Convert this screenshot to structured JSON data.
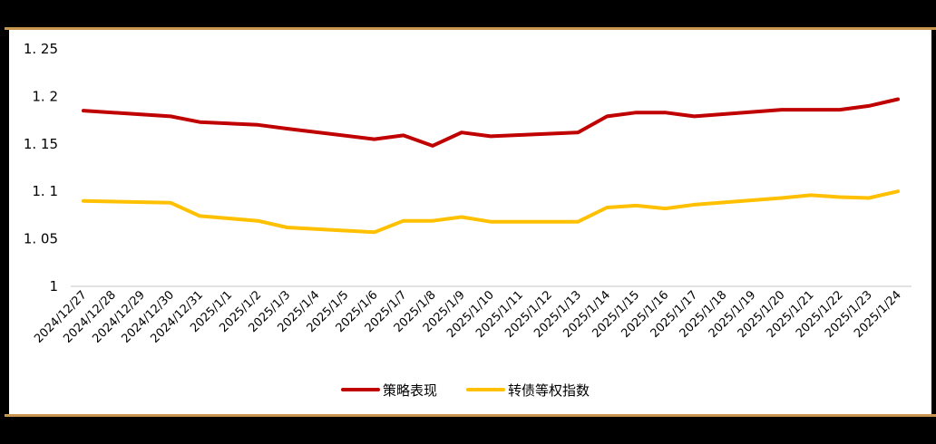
{
  "chart_data": {
    "type": "line",
    "title": "",
    "xlabel": "",
    "ylabel": "",
    "ylim": [
      1,
      1.25
    ],
    "yticks": [
      "1",
      "1.05",
      "1.1",
      "1.15",
      "1.2",
      "1.25"
    ],
    "grid": false,
    "legend_position": "bottom",
    "categories": [
      "2024/12/27",
      "2024/12/28",
      "2024/12/29",
      "2024/12/30",
      "2024/12/31",
      "2025/1/1",
      "2025/1/2",
      "2025/1/3",
      "2025/1/4",
      "2025/1/5",
      "2025/1/6",
      "2025/1/7",
      "2025/1/8",
      "2025/1/9",
      "2025/1/10",
      "2025/1/11",
      "2025/1/12",
      "2025/1/13",
      "2025/1/14",
      "2025/1/15",
      "2025/1/16",
      "2025/1/17",
      "2025/1/18",
      "2025/1/19",
      "2025/1/20",
      "2025/1/21",
      "2025/1/22",
      "2025/1/23",
      "2025/1/24"
    ],
    "series": [
      {
        "name": "策略表现",
        "color": "#C00000",
        "values": [
          1.185,
          null,
          null,
          1.179,
          1.173,
          null,
          1.17,
          1.166,
          null,
          null,
          1.155,
          1.159,
          1.148,
          1.162,
          1.158,
          null,
          null,
          1.162,
          1.179,
          1.183,
          1.183,
          1.179,
          null,
          null,
          1.186,
          1.186,
          1.186,
          1.19,
          1.197
        ]
      },
      {
        "name": "转债等权指数",
        "color": "#FFC000",
        "values": [
          1.09,
          null,
          null,
          1.088,
          1.074,
          null,
          1.069,
          1.062,
          null,
          null,
          1.057,
          1.069,
          1.069,
          1.073,
          1.068,
          null,
          null,
          1.068,
          1.083,
          1.085,
          1.082,
          1.086,
          null,
          null,
          1.093,
          1.096,
          1.094,
          1.093,
          1.1
        ]
      }
    ]
  },
  "legend": {
    "items": [
      {
        "label": "策略表现",
        "color": "#C00000"
      },
      {
        "label": "转债等权指数",
        "color": "#FFC000"
      }
    ]
  },
  "frame": {
    "accent_color": "#C8964F"
  }
}
